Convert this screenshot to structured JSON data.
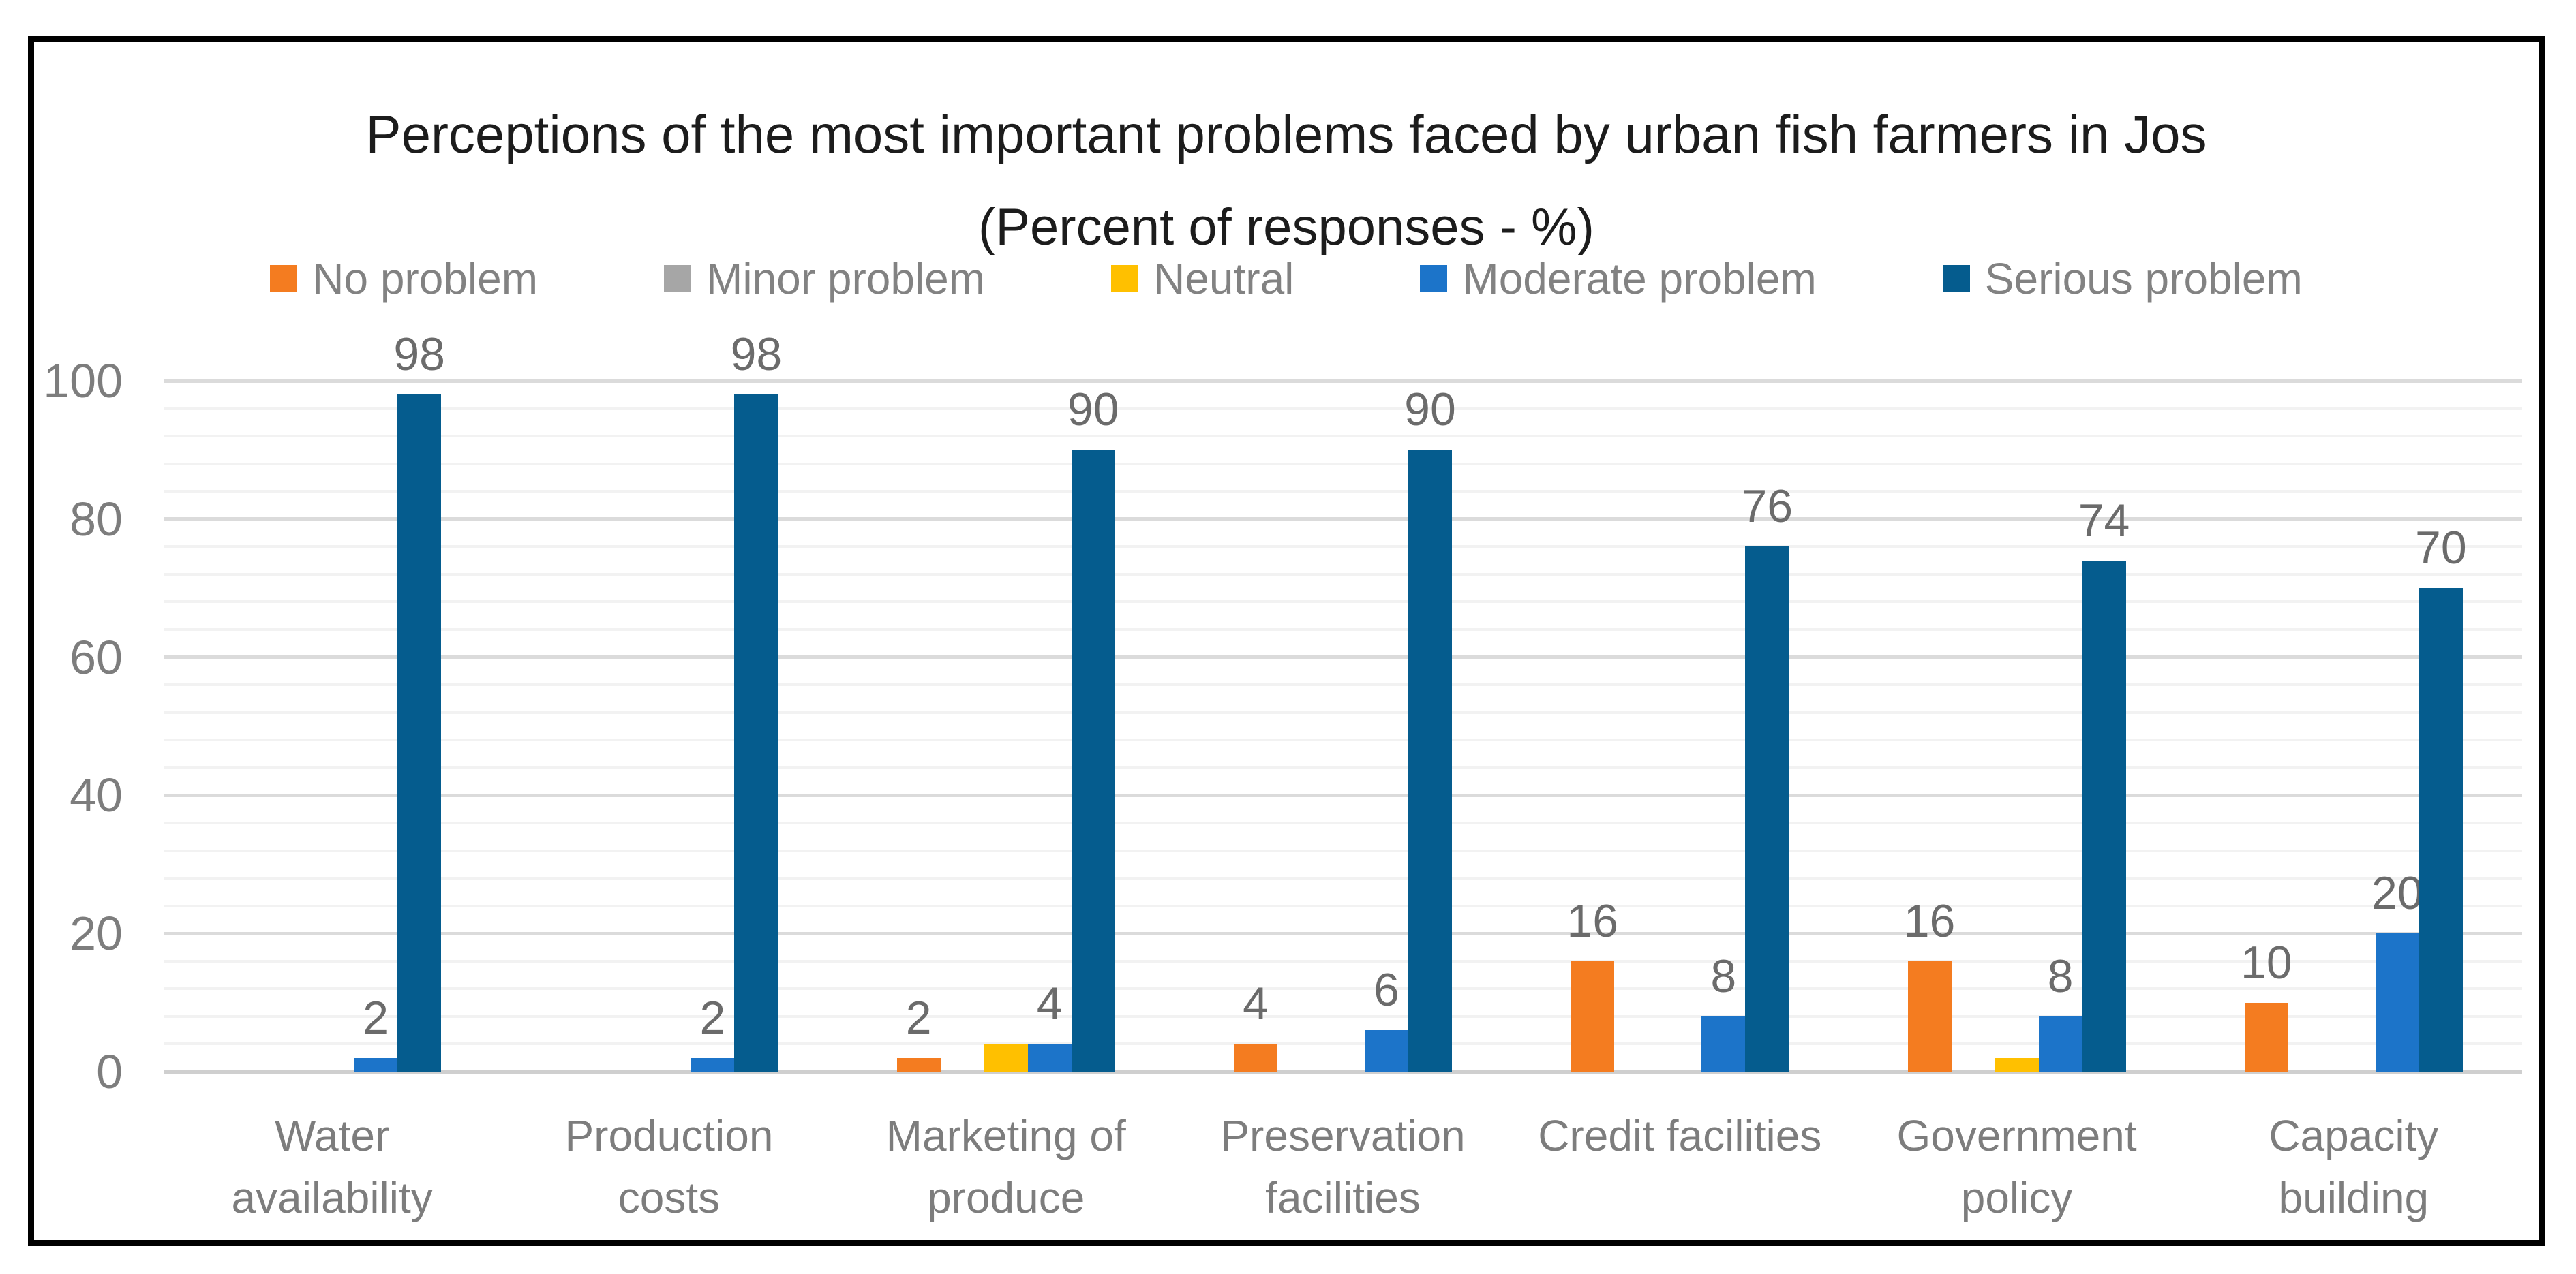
{
  "chart_data": {
    "type": "bar",
    "title": "Perceptions of the most important problems faced by urban fish farmers in Jos",
    "subtitle": "(Percent of responses - %)",
    "categories": [
      "Water\navailability",
      "Production\ncosts",
      "Marketing of\nproduce",
      "Preservation\nfacilities",
      "Credit facilities",
      "Government\npolicy",
      "Capacity\nbuilding"
    ],
    "series": [
      {
        "name": "No problem",
        "color": "#F47C20",
        "values": [
          0,
          0,
          2,
          4,
          16,
          16,
          10
        ],
        "show_labels": true
      },
      {
        "name": "Minor problem",
        "color": "#A6A6A6",
        "values": [
          0,
          0,
          0,
          0,
          0,
          0,
          0
        ],
        "show_labels": false
      },
      {
        "name": "Neutral",
        "color": "#FFC000",
        "values": [
          0,
          0,
          4,
          0,
          0,
          2,
          0
        ],
        "show_labels": false
      },
      {
        "name": "Moderate problem",
        "color": "#1C74C9",
        "values": [
          2,
          2,
          4,
          6,
          8,
          8,
          20
        ],
        "show_labels": true
      },
      {
        "name": "Serious problem",
        "color": "#055C8E",
        "values": [
          98,
          98,
          90,
          90,
          76,
          74,
          70
        ],
        "show_labels": true
      }
    ],
    "ylim": [
      0,
      100
    ],
    "y_ticks": [
      0,
      20,
      40,
      60,
      80,
      100
    ],
    "y_major_step": 20,
    "y_minor_step": 4,
    "grid": true,
    "legend_position": "top",
    "gridline_major_color": "#DBDBDB",
    "gridline_minor_color": "#F2F2F2",
    "axis_text_color": "#7d7d7d",
    "data_label_color": "#6b6b6b"
  }
}
